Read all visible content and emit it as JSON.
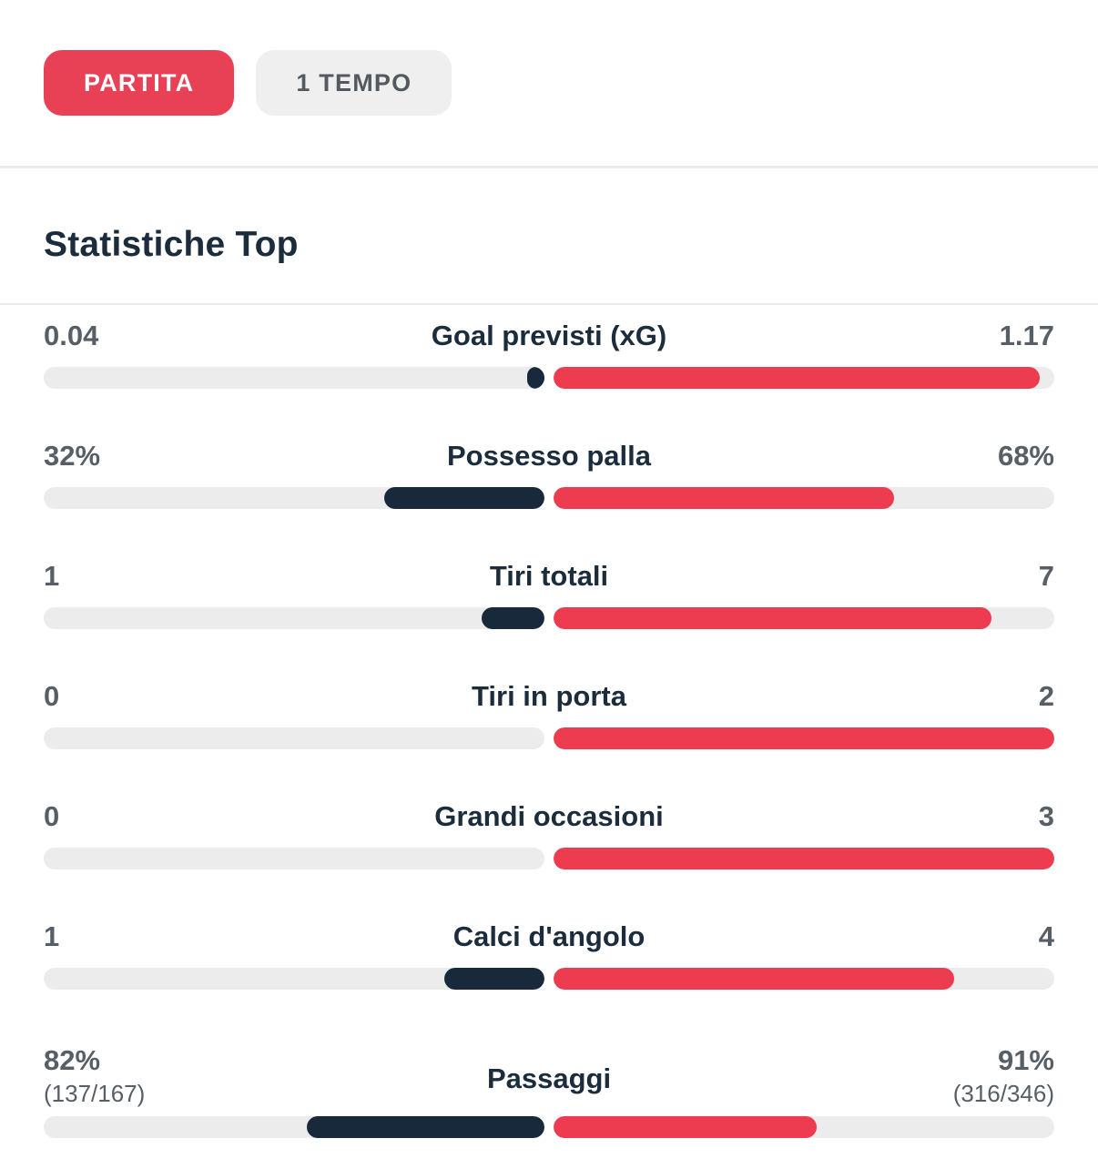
{
  "tabs": [
    {
      "label": "PARTITA",
      "active": true
    },
    {
      "label": "1 TEMPO",
      "active": false
    }
  ],
  "section_title": "Statistiche Top",
  "rows": [
    {
      "label": "Goal previsti (xG)",
      "home": "0.04",
      "away": "1.17",
      "home_pct": 3.5,
      "away_pct": 97
    },
    {
      "label": "Possesso palla",
      "home": "32%",
      "away": "68%",
      "home_pct": 32,
      "away_pct": 68
    },
    {
      "label": "Tiri totali",
      "home": "1",
      "away": "7",
      "home_pct": 12.5,
      "away_pct": 87.5
    },
    {
      "label": "Tiri in porta",
      "home": "0",
      "away": "2",
      "home_pct": 0,
      "away_pct": 100
    },
    {
      "label": "Grandi occasioni",
      "home": "0",
      "away": "3",
      "home_pct": 0,
      "away_pct": 100
    },
    {
      "label": "Calci d'angolo",
      "home": "1",
      "away": "4",
      "home_pct": 20,
      "away_pct": 80
    },
    {
      "label": "Passaggi",
      "home": "82%",
      "away": "91%",
      "home_sub": "(137/167)",
      "away_sub": "(316/346)",
      "home_pct": 47.4,
      "away_pct": 52.6
    }
  ],
  "colors": {
    "red": "#ED3B50",
    "navy": "#17293A",
    "text_dark": "#1B2C3D",
    "text_gray": "#575E66",
    "track": "#ECECEC",
    "tab_active_bg": "#E84156",
    "tab_inactive_bg": "#EFEFEF",
    "tab_inactive_text": "#54595F",
    "divider": "#EBEBEB"
  }
}
